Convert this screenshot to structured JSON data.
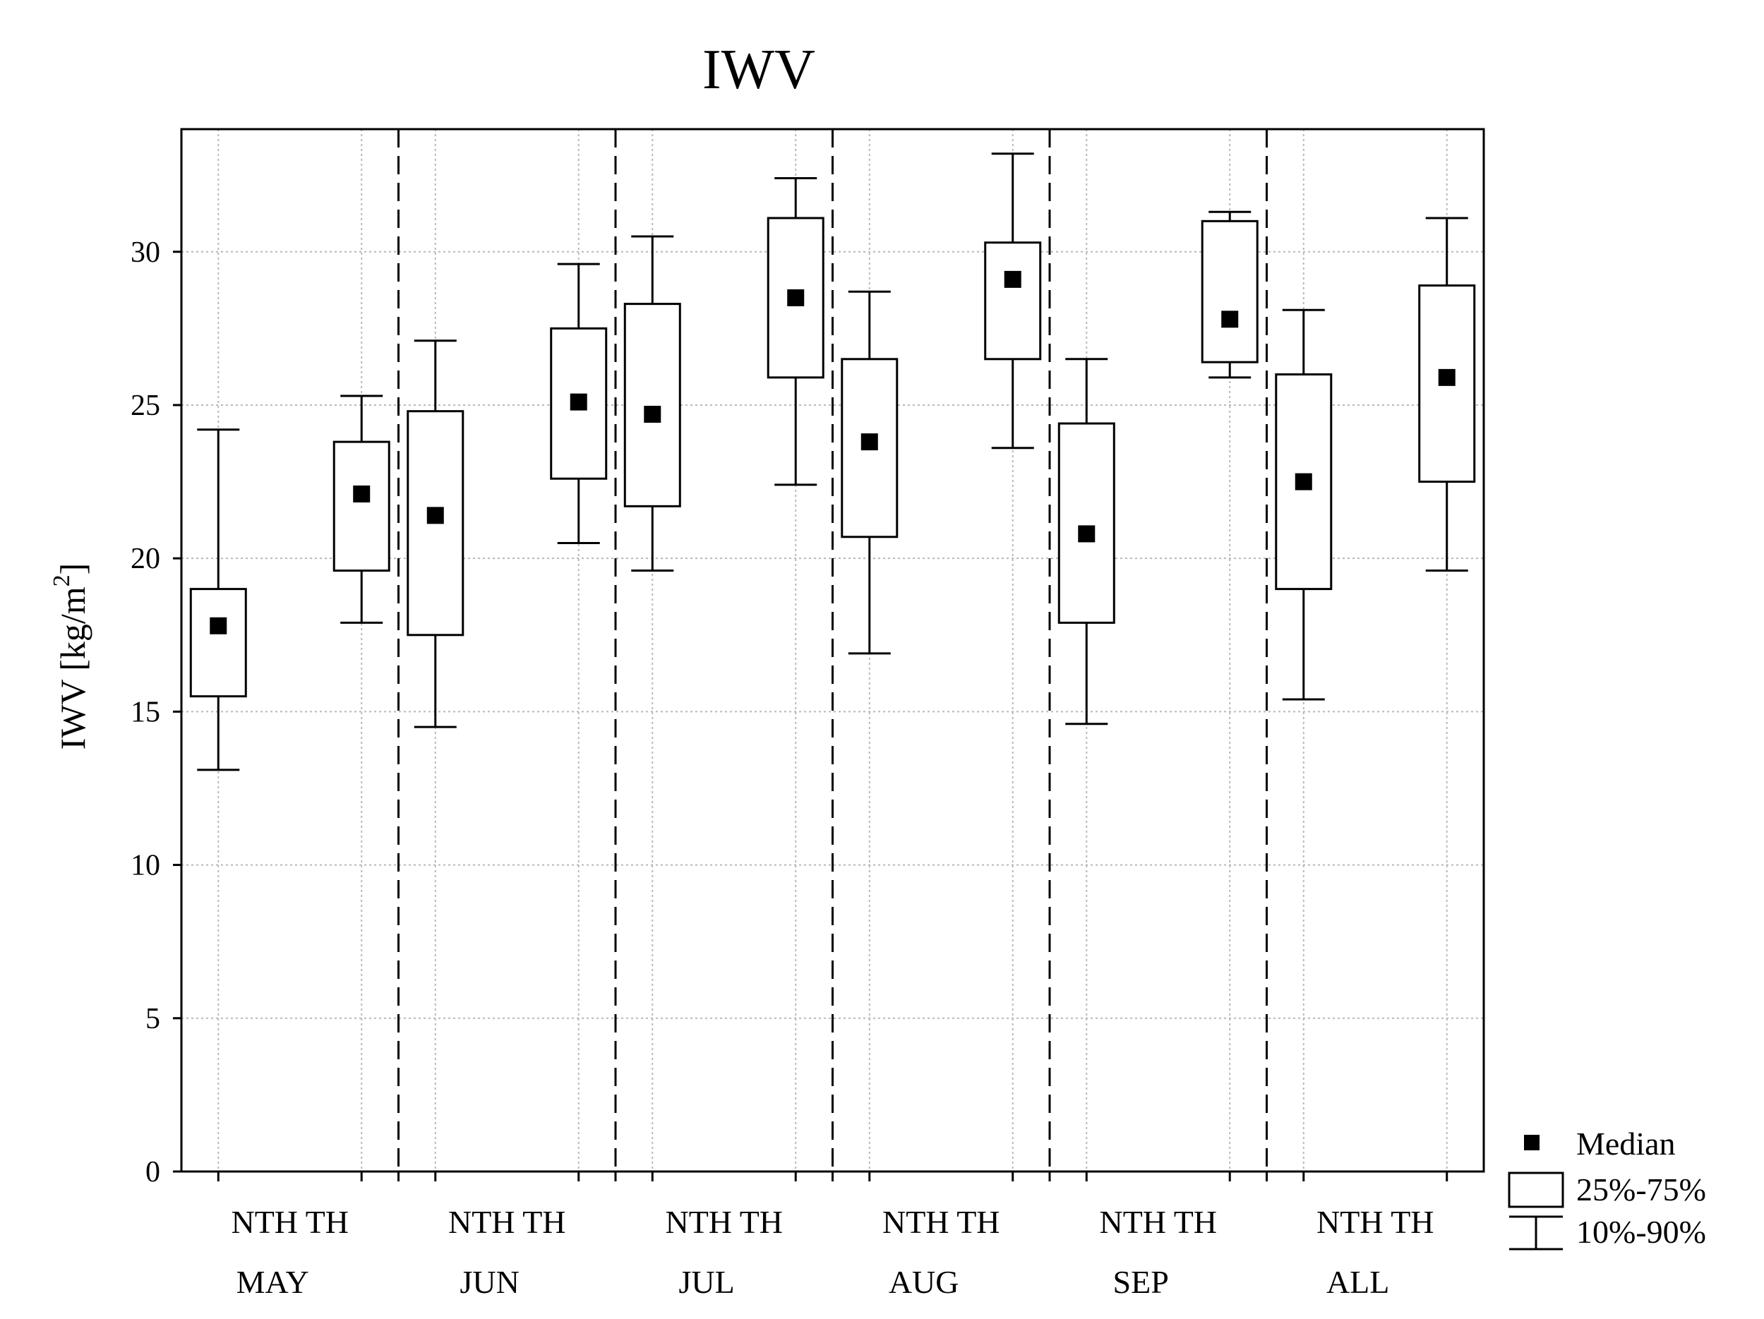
{
  "chart_data": {
    "type": "box",
    "title": "IWV",
    "ylabel": "IWV [kg/m",
    "ylabel_sup": "2",
    "ylabel_close": "]",
    "ylim": [
      0,
      34
    ],
    "yticks": [
      0,
      5,
      10,
      15,
      20,
      25,
      30
    ],
    "grid": true,
    "legend_position": "bottom-right",
    "legend": {
      "median": "Median",
      "box": "25%-75%",
      "whisker": "10%-90%"
    },
    "groups": [
      {
        "label": "MAY",
        "boxes": [
          {
            "label": "NTH",
            "p10": 13.1,
            "p25": 15.5,
            "median": 17.8,
            "p75": 19.0,
            "p90": 24.2
          },
          {
            "label": "TH",
            "p10": 17.9,
            "p25": 19.6,
            "median": 22.1,
            "p75": 23.8,
            "p90": 25.3
          }
        ]
      },
      {
        "label": "JUN",
        "boxes": [
          {
            "label": "NTH",
            "p10": 14.5,
            "p25": 17.5,
            "median": 21.4,
            "p75": 24.8,
            "p90": 27.1
          },
          {
            "label": "TH",
            "p10": 20.5,
            "p25": 22.6,
            "median": 25.1,
            "p75": 27.5,
            "p90": 29.6
          }
        ]
      },
      {
        "label": "JUL",
        "boxes": [
          {
            "label": "NTH",
            "p10": 19.6,
            "p25": 21.7,
            "median": 24.7,
            "p75": 28.3,
            "p90": 30.5
          },
          {
            "label": "TH",
            "p10": 22.4,
            "p25": 25.9,
            "median": 28.5,
            "p75": 31.1,
            "p90": 32.4
          }
        ]
      },
      {
        "label": "AUG",
        "boxes": [
          {
            "label": "NTH",
            "p10": 16.9,
            "p25": 20.7,
            "median": 23.8,
            "p75": 26.5,
            "p90": 28.7
          },
          {
            "label": "TH",
            "p10": 23.6,
            "p25": 26.5,
            "median": 29.1,
            "p75": 30.3,
            "p90": 33.2
          }
        ]
      },
      {
        "label": "SEP",
        "boxes": [
          {
            "label": "NTH",
            "p10": 14.6,
            "p25": 17.9,
            "median": 20.8,
            "p75": 24.4,
            "p90": 26.5
          },
          {
            "label": "TH",
            "p10": 25.9,
            "p25": 26.4,
            "median": 27.8,
            "p75": 31.0,
            "p90": 31.3
          }
        ]
      },
      {
        "label": "ALL",
        "boxes": [
          {
            "label": "NTH",
            "p10": 15.4,
            "p25": 19.0,
            "median": 22.5,
            "p75": 26.0,
            "p90": 28.1
          },
          {
            "label": "TH",
            "p10": 19.6,
            "p25": 22.5,
            "median": 25.9,
            "p75": 28.9,
            "p90": 31.1
          }
        ]
      }
    ]
  }
}
